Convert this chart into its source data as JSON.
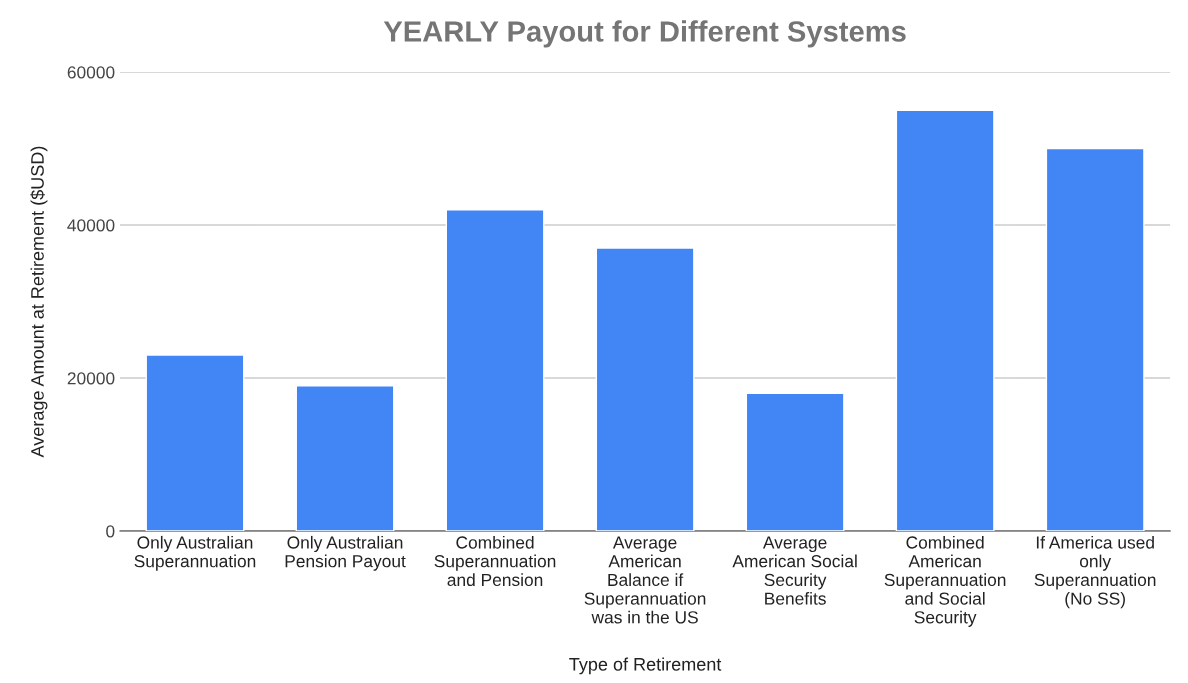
{
  "chart_data": {
    "type": "bar",
    "title": "YEARLY Payout for Different Systems",
    "xlabel": "Type of Retirement",
    "ylabel": "Average Amount at Retirement ($USD)",
    "categories": [
      "Only Australian\nSuperannuation",
      "Only Australian\nPension Payout",
      "Combined\nSuperannuation\nand Pension",
      "Average\nAmerican\nBalance if\nSuperannuation\nwas in the US",
      "Average\nAmerican Social\nSecurity\nBenefits",
      "Combined\nAmerican\nSuperannuation\nand Social\nSecurity",
      "If America used\nonly\nSuperannuation\n(No SS)"
    ],
    "values": [
      23000,
      19000,
      42000,
      37000,
      18000,
      55000,
      50000
    ],
    "color": "#4285f4",
    "ylim": [
      0,
      60000
    ],
    "yticks": [
      0,
      20000,
      40000,
      60000
    ],
    "grid": "y",
    "legend": false
  }
}
